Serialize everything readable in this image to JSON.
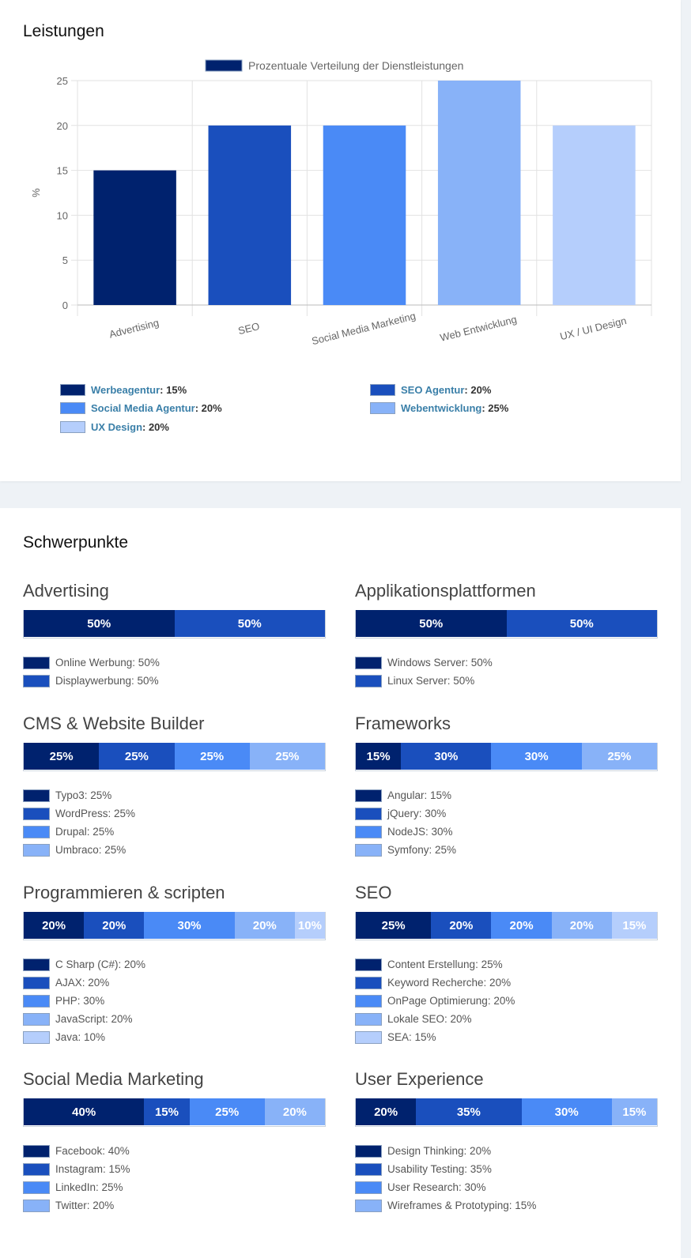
{
  "leistungen_title": "Leistungen",
  "schwerpunkte_title": "Schwerpunkte",
  "colors": [
    "#00226e",
    "#1a4fbd",
    "#4a8af6",
    "#88b2f8",
    "#b5cefc"
  ],
  "chart_data": {
    "type": "bar",
    "title": "",
    "dataset_label": "Prozentuale Verteilung der Dienstleistungen",
    "ylabel": "%",
    "xlabel": "",
    "categories": [
      "Advertising",
      "SEO",
      "Social Media Marketing",
      "Web Entwicklung",
      "UX / UI Design"
    ],
    "values": [
      15,
      20,
      20,
      25,
      20
    ],
    "ylim": [
      0,
      25
    ],
    "yticks": [
      "0",
      "5",
      "10",
      "15",
      "20",
      "25"
    ],
    "grid": true,
    "legend": "top"
  },
  "chart_legend": [
    {
      "label": "Werbeagentur",
      "value": ": 15%"
    },
    {
      "label": "SEO Agentur",
      "value": ": 20%"
    },
    {
      "label": "Social Media Agentur",
      "value": ": 20%"
    },
    {
      "label": "Webentwicklung",
      "value": ": 25%"
    },
    {
      "label": "UX Design",
      "value": ": 20%"
    }
  ],
  "blocks": [
    {
      "title": "Advertising",
      "segments": [
        50,
        50
      ],
      "seg_labels": [
        "50%",
        "50%"
      ],
      "items": [
        "Online Werbung: 50%",
        "Displaywerbung: 50%"
      ]
    },
    {
      "title": "Applikationsplattformen",
      "segments": [
        50,
        50
      ],
      "seg_labels": [
        "50%",
        "50%"
      ],
      "items": [
        "Windows Server: 50%",
        "Linux Server: 50%"
      ]
    },
    {
      "title": "CMS & Website Builder",
      "segments": [
        25,
        25,
        25,
        25
      ],
      "seg_labels": [
        "25%",
        "25%",
        "25%",
        "25%"
      ],
      "items": [
        "Typo3: 25%",
        "WordPress: 25%",
        "Drupal: 25%",
        "Umbraco: 25%"
      ]
    },
    {
      "title": "Frameworks",
      "segments": [
        15,
        30,
        30,
        25
      ],
      "seg_labels": [
        "15%",
        "30%",
        "30%",
        "25%"
      ],
      "items": [
        "Angular: 15%",
        "jQuery: 30%",
        "NodeJS: 30%",
        "Symfony: 25%"
      ]
    },
    {
      "title": "Programmieren & scripten",
      "segments": [
        20,
        20,
        30,
        20,
        10
      ],
      "seg_labels": [
        "20%",
        "20%",
        "30%",
        "20%",
        "10%"
      ],
      "items": [
        "C Sharp (C#): 20%",
        "AJAX: 20%",
        "PHP: 30%",
        "JavaScript: 20%",
        "Java: 10%"
      ]
    },
    {
      "title": "SEO",
      "segments": [
        25,
        20,
        20,
        20,
        15
      ],
      "seg_labels": [
        "25%",
        "20%",
        "20%",
        "20%",
        "15%"
      ],
      "items": [
        "Content Erstellung: 25%",
        "Keyword Recherche: 20%",
        "OnPage Optimierung: 20%",
        "Lokale SEO: 20%",
        "SEA: 15%"
      ]
    },
    {
      "title": "Social Media Marketing",
      "segments": [
        40,
        15,
        25,
        20
      ],
      "seg_labels": [
        "40%",
        "15%",
        "25%",
        "20%"
      ],
      "items": [
        "Facebook: 40%",
        "Instagram: 15%",
        "LinkedIn: 25%",
        "Twitter: 20%"
      ]
    },
    {
      "title": "User Experience",
      "segments": [
        20,
        35,
        30,
        15
      ],
      "seg_labels": [
        "20%",
        "35%",
        "30%",
        "15%"
      ],
      "items": [
        "Design Thinking: 20%",
        "Usability Testing: 35%",
        "User Research: 30%",
        "Wireframes & Prototyping: 15%"
      ]
    }
  ]
}
